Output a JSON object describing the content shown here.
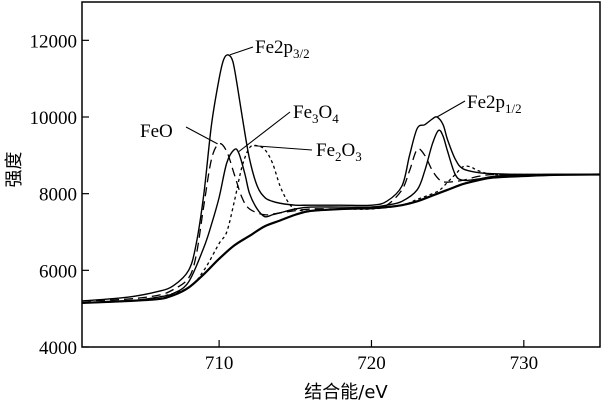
{
  "chart_data": {
    "type": "line",
    "xlabel": "结合能/eV",
    "ylabel": "强度",
    "xlim": [
      701,
      735
    ],
    "ylim": [
      4000,
      13000
    ],
    "xticks": [
      710,
      720,
      730
    ],
    "yticks": [
      4000,
      6000,
      8000,
      10000,
      12000
    ],
    "grid": false,
    "legend": "none",
    "series": [
      {
        "style": "solid",
        "x": [
          701,
          704,
          706,
          707,
          708,
          708.5,
          709,
          709.5,
          710,
          710.3,
          710.6,
          710.9,
          711.2,
          711.6,
          712,
          712.5,
          713,
          713.5,
          714,
          715,
          716,
          718,
          720,
          721,
          722,
          722.5,
          723,
          723.5,
          724,
          724.3,
          724.7,
          725,
          725.5,
          726,
          727,
          728,
          730,
          732,
          735
        ],
        "y": [
          5200,
          5300,
          5450,
          5600,
          6000,
          6700,
          8000,
          9800,
          11000,
          11500,
          11620,
          11450,
          10800,
          9800,
          8900,
          8200,
          7900,
          7800,
          7750,
          7700,
          7700,
          7700,
          7700,
          7800,
          8200,
          9000,
          9700,
          9800,
          9950,
          10000,
          9800,
          9400,
          8900,
          8650,
          8550,
          8520,
          8500,
          8500,
          8500
        ]
      },
      {
        "style": "long-dash",
        "x": [
          701,
          704,
          706,
          707,
          708,
          708.5,
          709,
          709.5,
          710,
          710.5,
          711,
          711.5,
          712,
          713,
          714,
          716,
          718,
          720,
          721,
          722,
          722.5,
          723,
          723.5,
          724,
          724.5,
          725,
          726,
          727,
          728,
          730,
          735
        ],
        "y": [
          5200,
          5250,
          5350,
          5500,
          5800,
          6400,
          7700,
          8900,
          9300,
          9100,
          8500,
          7900,
          7600,
          7450,
          7500,
          7600,
          7600,
          7650,
          7700,
          8100,
          8600,
          9150,
          9000,
          8600,
          8350,
          8300,
          8350,
          8450,
          8500,
          8500,
          8500
        ]
      },
      {
        "style": "solid",
        "x": [
          701,
          704,
          706,
          707,
          708,
          709,
          709.5,
          710,
          710.5,
          711,
          711.3,
          711.7,
          712,
          712.5,
          713,
          713.5,
          714,
          715,
          716,
          718,
          720,
          721,
          722,
          723,
          723.5,
          724,
          724.4,
          724.7,
          725,
          725.5,
          726,
          727,
          728,
          730,
          735
        ],
        "y": [
          5150,
          5200,
          5300,
          5400,
          5700,
          6600,
          7200,
          7900,
          8800,
          9150,
          9050,
          8500,
          8000,
          7600,
          7400,
          7450,
          7500,
          7600,
          7650,
          7650,
          7650,
          7700,
          7800,
          8100,
          8600,
          9300,
          9650,
          9500,
          9100,
          8500,
          8350,
          8380,
          8450,
          8500,
          8500
        ]
      },
      {
        "style": "short-dash",
        "x": [
          701,
          704,
          706,
          708,
          709,
          710,
          710.5,
          711,
          711.5,
          712,
          712.5,
          713,
          713.5,
          714,
          714.5,
          715,
          716,
          718,
          720,
          722,
          723,
          724,
          724.5,
          725,
          725.5,
          726,
          726.5,
          727,
          728,
          730,
          735
        ],
        "y": [
          5150,
          5200,
          5300,
          5550,
          6000,
          6700,
          7000,
          7800,
          8700,
          9200,
          9250,
          9150,
          8800,
          8200,
          7800,
          7600,
          7550,
          7600,
          7600,
          7700,
          7850,
          8000,
          8100,
          8300,
          8500,
          8700,
          8700,
          8600,
          8500,
          8500,
          8500
        ]
      },
      {
        "style": "solid-background",
        "x": [
          701,
          704,
          706,
          707,
          708,
          709,
          710,
          711,
          712,
          713,
          714,
          715,
          716,
          718,
          720,
          721,
          722,
          723,
          724,
          725,
          726,
          727,
          728,
          730,
          732,
          735
        ],
        "y": [
          5150,
          5200,
          5250,
          5350,
          5550,
          5900,
          6300,
          6650,
          6900,
          7150,
          7300,
          7450,
          7550,
          7600,
          7620,
          7650,
          7700,
          7800,
          7950,
          8100,
          8250,
          8350,
          8420,
          8460,
          8490,
          8500
        ]
      }
    ],
    "annotations": [
      {
        "id": "fe2p32",
        "base": "Fe2p",
        "sub": "3/2",
        "x": 710.7,
        "y": 11620
      },
      {
        "id": "fe3o4",
        "base": "Fe",
        "sub1": "3",
        "mid": "O",
        "sub2": "4",
        "x": 711.3,
        "y": 9100
      },
      {
        "id": "feo",
        "base": "FeO",
        "x": 709.9,
        "y": 9300
      },
      {
        "id": "fe2o3",
        "base": "Fe",
        "sub1": "2",
        "mid": "O",
        "sub2": "3",
        "x": 712.3,
        "y": 9250
      },
      {
        "id": "fe2p12",
        "base": "Fe2p",
        "sub": "1/2",
        "x": 724.3,
        "y": 10000
      }
    ]
  }
}
